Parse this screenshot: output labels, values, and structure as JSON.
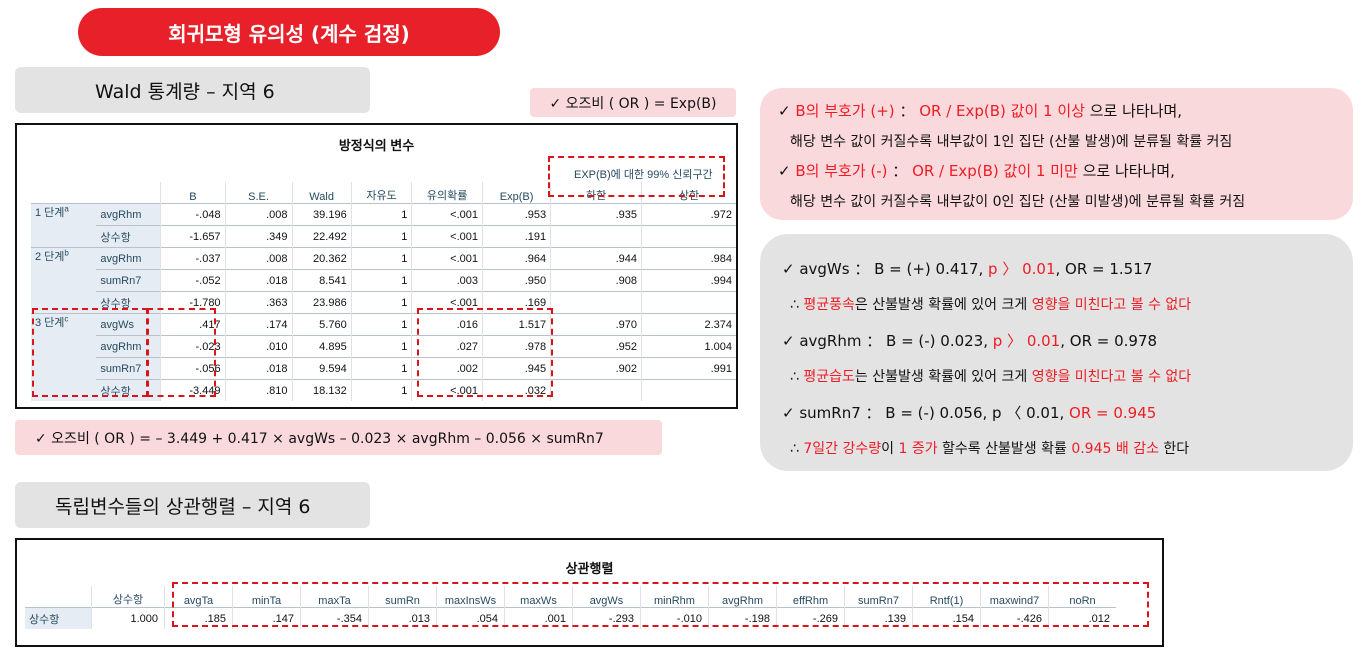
{
  "title": "회귀모형 유의성 (계수 검정)",
  "wald_label": "Wald 통계량 – 지역 6",
  "odds_label": "✓ 오즈비 ( OR ) = Exp(B)",
  "table1": {
    "title": "방정식의 변수",
    "ci_header": "EXP(B)에 대한 99% 신뢰구간",
    "headers": [
      "B",
      "S.E.",
      "Wald",
      "자유도",
      "유의확률",
      "Exp(B)",
      "하한",
      "상한"
    ],
    "steps": [
      {
        "label": "1 단계",
        "sup": "a",
        "rows": [
          {
            "var": "avgRhm",
            "vals": [
              "-.048",
              ".008",
              "39.196",
              "1",
              "<.001",
              ".953",
              ".935",
              ".972"
            ]
          },
          {
            "var": "상수항",
            "vals": [
              "-1.657",
              ".349",
              "22.492",
              "1",
              "<.001",
              ".191",
              "",
              ""
            ]
          }
        ]
      },
      {
        "label": "2 단계",
        "sup": "b",
        "rows": [
          {
            "var": "avgRhm",
            "vals": [
              "-.037",
              ".008",
              "20.362",
              "1",
              "<.001",
              ".964",
              ".944",
              ".984"
            ]
          },
          {
            "var": "sumRn7",
            "vals": [
              "-.052",
              ".018",
              "8.541",
              "1",
              ".003",
              ".950",
              ".908",
              ".994"
            ]
          },
          {
            "var": "상수항",
            "vals": [
              "-1.780",
              ".363",
              "23.986",
              "1",
              "<.001",
              ".169",
              "",
              ""
            ]
          }
        ]
      },
      {
        "label": "3 단계",
        "sup": "c",
        "rows": [
          {
            "var": "avgWs",
            "vals": [
              ".417",
              ".174",
              "5.760",
              "1",
              ".016",
              "1.517",
              ".970",
              "2.374"
            ]
          },
          {
            "var": "avgRhm",
            "vals": [
              "-.023",
              ".010",
              "4.895",
              "1",
              ".027",
              ".978",
              ".952",
              "1.004"
            ]
          },
          {
            "var": "sumRn7",
            "vals": [
              "-.056",
              ".018",
              "9.594",
              "1",
              ".002",
              ".945",
              ".902",
              ".991"
            ]
          },
          {
            "var": "상수항",
            "vals": [
              "-3.449",
              ".810",
              "18.132",
              "1",
              "<.001",
              ".032",
              "",
              ""
            ]
          }
        ]
      }
    ]
  },
  "formula": "✓ 오즈비 ( OR ) = – 3.449 + 0.417 × avgWs – 0.023 × avgRhm – 0.056 × sumRn7",
  "corr_label": "독립변수들의 상관행렬 – 지역 6",
  "table2": {
    "title": "상관행렬",
    "headers": [
      "상수항",
      "avgTa",
      "minTa",
      "maxTa",
      "sumRn",
      "maxInsWs",
      "maxWs",
      "avgWs",
      "minRhm",
      "avgRhm",
      "effRhm",
      "sumRn7",
      "Rntf(1)",
      "maxwind7",
      "noRn"
    ],
    "row_label": "상수항",
    "values": [
      "1.000",
      ".185",
      ".147",
      "-.354",
      ".013",
      ".054",
      ".001",
      "-.293",
      "-.010",
      "-.198",
      "-.269",
      ".139",
      ".154",
      "-.426",
      ".012"
    ]
  },
  "info_pink": {
    "l1_check": "✓",
    "l1_red": "B의 부호가 (+)",
    "l1_colon": " ： ",
    "l1_red2": "OR / Exp(B) 값이 1 이상",
    "l1_tail": " 으로 나타나며,",
    "l2": "해당 변수 값이 커질수록 내부값이 1인 집단 (산불 발생)에 분류될 확률 커짐",
    "l3_check": "✓",
    "l3_red": "B의 부호가 (-)",
    "l3_colon": " ： ",
    "l3_red2": "OR / Exp(B) 값이 1 미만",
    "l3_tail": " 으로 나타나며,",
    "l4": "해당 변수 값이 커질수록 내부값이 0인 집단 (산불 미발생)에 분류될 확률 커짐"
  },
  "info_gray": {
    "a1": "✓ avgWs ： B = (+) 0.417, ",
    "a1_red": "p 〉 0.01",
    "a1_tail": ",  OR = 1.517",
    "a2_pre": "∴ ",
    "a2_red": "평균풍속",
    "a2_mid": "은 산불발생 확률에 있어 크게 ",
    "a2_red2": "영향을 미친다고 볼 수 없다",
    "b1": "✓ avgRhm ： B = (-) 0.023, ",
    "b1_red": "p 〉 0.01",
    "b1_tail": ",  OR = 0.978",
    "b2_pre": "∴ ",
    "b2_red": "평균습도",
    "b2_mid": "는 산불발생 확률에 있어 크게 ",
    "b2_red2": "영향을 미친다고 볼 수 없다",
    "c1": "✓ sumRn7 ： B = (-) 0.056, p 〈 0.01,  ",
    "c1_red": "OR = 0.945",
    "c2_pre": "∴ ",
    "c2_red": "7일간 강수량",
    "c2_mid": "이 ",
    "c2_red2": "1 증가",
    "c2_mid2": " 할수록 산불발생 확률 ",
    "c2_red3": "0.945 배 감소",
    "c2_tail": " 한다"
  },
  "colors": {
    "accent": "#e8202a",
    "pink": "#fad9dc",
    "gray": "#e3e3e3"
  }
}
